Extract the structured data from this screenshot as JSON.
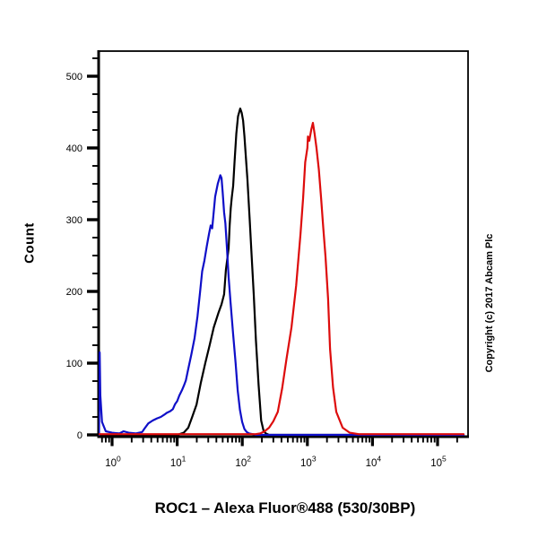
{
  "title": "ROC1 – Alexa Fluor®488 (530/30BP)",
  "copyright": "Copyright (c) 2017 Abcam Plc",
  "chart_data": {
    "type": "line",
    "subtype": "flow-cytometry-histogram",
    "title": "ROC1 – Alexa Fluor®488 (530/30BP)",
    "xlabel": "",
    "ylabel": "Count",
    "x_scale": "log10",
    "x_tick_base": "10",
    "x_decades": [
      0,
      1,
      2,
      3,
      4,
      5
    ],
    "xlim_log": [
      -0.207,
      5.468
    ],
    "ylim": [
      0,
      537
    ],
    "y_major_ticks": [
      0,
      100,
      200,
      300,
      400,
      500
    ],
    "y_minor_step": 25,
    "grid": false,
    "legend": "none",
    "axis_color": "#000000",
    "series": [
      {
        "name": "black-curve",
        "color": "#000000",
        "points": [
          [
            0.63,
            0
          ],
          [
            10.0,
            0
          ],
          [
            12.6,
            3
          ],
          [
            14.8,
            10
          ],
          [
            17.0,
            25
          ],
          [
            19.8,
            42
          ],
          [
            23.0,
            72
          ],
          [
            27.0,
            100
          ],
          [
            31.5,
            125
          ],
          [
            36.5,
            150
          ],
          [
            43.0,
            170
          ],
          [
            48.0,
            182
          ],
          [
            52.6,
            196
          ],
          [
            56.0,
            230
          ],
          [
            61.7,
            260
          ],
          [
            64.0,
            292
          ],
          [
            66.5,
            316
          ],
          [
            69.0,
            331
          ],
          [
            72.4,
            347
          ],
          [
            76.0,
            380
          ],
          [
            81.0,
            420
          ],
          [
            86.0,
            444
          ],
          [
            93.0,
            455
          ],
          [
            98.0,
            449
          ],
          [
            103.0,
            438
          ],
          [
            108.0,
            416
          ],
          [
            113.0,
            390
          ],
          [
            120.0,
            356
          ],
          [
            130.0,
            300
          ],
          [
            138.0,
            256
          ],
          [
            150.0,
            196
          ],
          [
            162.0,
            132
          ],
          [
            178.0,
            70
          ],
          [
            195.0,
            20
          ],
          [
            212.0,
            6
          ],
          [
            230.0,
            2
          ],
          [
            258.0,
            0
          ],
          [
            251000,
            0
          ]
        ]
      },
      {
        "name": "blue-curve",
        "color": "#0f0fc8",
        "points": [
          [
            0.63,
            0
          ],
          [
            0.645,
            115
          ],
          [
            0.66,
            55
          ],
          [
            0.7,
            18
          ],
          [
            0.8,
            5
          ],
          [
            1.0,
            3
          ],
          [
            1.3,
            2
          ],
          [
            1.5,
            5
          ],
          [
            1.8,
            3
          ],
          [
            2.3,
            2
          ],
          [
            2.9,
            4
          ],
          [
            3.1,
            8
          ],
          [
            3.6,
            16
          ],
          [
            4.2,
            20
          ],
          [
            4.9,
            23
          ],
          [
            5.6,
            25
          ],
          [
            6.3,
            28
          ],
          [
            7.0,
            31
          ],
          [
            7.8,
            33
          ],
          [
            8.6,
            36
          ],
          [
            9.3,
            43
          ],
          [
            10.0,
            47
          ],
          [
            10.8,
            55
          ],
          [
            11.8,
            62
          ],
          [
            12.6,
            68
          ],
          [
            13.6,
            76
          ],
          [
            14.8,
            92
          ],
          [
            16.5,
            112
          ],
          [
            18.5,
            135
          ],
          [
            20.5,
            165
          ],
          [
            22.4,
            198
          ],
          [
            24.2,
            228
          ],
          [
            26.2,
            243
          ],
          [
            28.5,
            263
          ],
          [
            30.8,
            280
          ],
          [
            32.7,
            292
          ],
          [
            34.5,
            288
          ],
          [
            38.3,
            332
          ],
          [
            42.0,
            350
          ],
          [
            46.0,
            362
          ],
          [
            48.0,
            358
          ],
          [
            50.0,
            338
          ],
          [
            52.6,
            310
          ],
          [
            55.0,
            295
          ],
          [
            58.0,
            262
          ],
          [
            61.7,
            220
          ],
          [
            66.0,
            185
          ],
          [
            72.4,
            140
          ],
          [
            79.0,
            100
          ],
          [
            85.0,
            62
          ],
          [
            92.0,
            35
          ],
          [
            99.6,
            18
          ],
          [
            108.0,
            8
          ],
          [
            117.0,
            4
          ],
          [
            128.0,
            2
          ],
          [
            145.0,
            1
          ],
          [
            165.0,
            0
          ],
          [
            251000,
            0
          ]
        ]
      },
      {
        "name": "red-curve",
        "color": "#dd0c0c",
        "points": [
          [
            0.63,
            1
          ],
          [
            2,
            1
          ],
          [
            20,
            1
          ],
          [
            100,
            1
          ],
          [
            160,
            1
          ],
          [
            190,
            2
          ],
          [
            220,
            5
          ],
          [
            258,
            10
          ],
          [
            300,
            19
          ],
          [
            351,
            32
          ],
          [
            410,
            65
          ],
          [
            478,
            106
          ],
          [
            570,
            150
          ],
          [
            672,
            208
          ],
          [
            784,
            280
          ],
          [
            860,
            330
          ],
          [
            926,
            380
          ],
          [
            1000,
            400
          ],
          [
            1020,
            416
          ],
          [
            1070,
            410
          ],
          [
            1150,
            426
          ],
          [
            1216,
            435
          ],
          [
            1290,
            420
          ],
          [
            1380,
            400
          ],
          [
            1500,
            370
          ],
          [
            1625,
            330
          ],
          [
            1750,
            290
          ],
          [
            1900,
            248
          ],
          [
            2080,
            190
          ],
          [
            2230,
            120
          ],
          [
            2480,
            66
          ],
          [
            2780,
            32
          ],
          [
            3480,
            10
          ],
          [
            4480,
            3
          ],
          [
            6130,
            1
          ],
          [
            20000,
            1
          ],
          [
            251000,
            1
          ]
        ]
      }
    ]
  }
}
